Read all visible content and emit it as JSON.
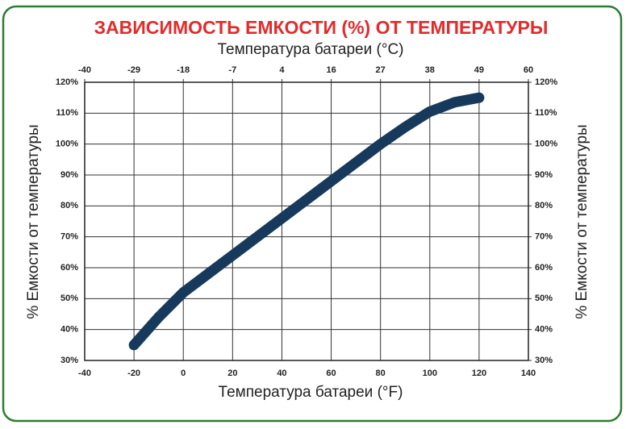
{
  "chart_data": {
    "type": "line",
    "title": "ЗАВИСИМОСТЬ ЕМКОСТИ (%) ОТ ТЕМПЕРАТУРЫ",
    "x_label": "Температура батареи (°F)",
    "x2_label": "Температура батареи (°C)",
    "y_label": "% Емкости от температуры",
    "y2_label": "% Емкости от температуры",
    "x": [
      -20,
      -10,
      0,
      10,
      20,
      30,
      40,
      50,
      60,
      70,
      80,
      90,
      100,
      110,
      120
    ],
    "values": [
      35,
      44,
      52,
      58,
      64,
      70,
      76,
      82,
      88,
      94,
      100,
      105.5,
      110.5,
      113.5,
      115
    ],
    "color": "#173a5c",
    "xlim": [
      -40,
      140
    ],
    "xticks": [
      -40,
      -20,
      0,
      20,
      40,
      60,
      80,
      100,
      120,
      140
    ],
    "x2lim": [
      -40,
      60
    ],
    "x2ticks": [
      -40,
      {
        "value": -28.89,
        "label": "-29"
      },
      {
        "value": -17.78,
        "label": "-18"
      },
      {
        "value": -6.67,
        "label": "-7"
      },
      {
        "value": 4.44,
        "label": "4"
      },
      {
        "value": 15.56,
        "label": "16"
      },
      {
        "value": 26.67,
        "label": "27"
      },
      {
        "value": 37.78,
        "label": "38"
      },
      {
        "value": 48.89,
        "label": "49"
      },
      60
    ],
    "ylim": [
      30,
      120
    ],
    "yticks": [
      {
        "value": 30,
        "label": "30%"
      },
      {
        "value": 40,
        "label": "40%"
      },
      {
        "value": 50,
        "label": "50%"
      },
      {
        "value": 60,
        "label": "60%"
      },
      {
        "value": 70,
        "label": "70%"
      },
      {
        "value": 80,
        "label": "80%"
      },
      {
        "value": 90,
        "label": "90%"
      },
      {
        "value": 100,
        "label": "100%"
      },
      {
        "value": 110,
        "label": "110%"
      },
      {
        "value": 120,
        "label": "120%"
      }
    ],
    "y2lim": [
      30,
      120
    ],
    "y2ticks": [
      {
        "value": 30,
        "label": "30%"
      },
      {
        "value": 40,
        "label": "40%"
      },
      {
        "value": 50,
        "label": "50%"
      },
      {
        "value": 60,
        "label": "60%"
      },
      {
        "value": 70,
        "label": "70%"
      },
      {
        "value": 80,
        "label": "80%"
      },
      {
        "value": 90,
        "label": "90%"
      },
      {
        "value": 100,
        "label": "100%"
      },
      {
        "value": 110,
        "label": "110%"
      },
      {
        "value": 120,
        "label": "120%"
      }
    ],
    "grid": true
  }
}
